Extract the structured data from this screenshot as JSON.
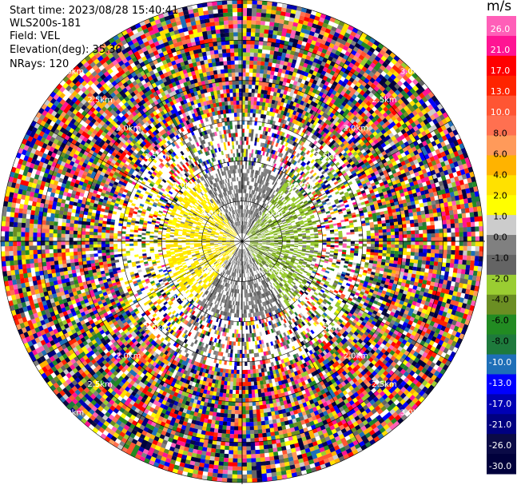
{
  "header": {
    "start_time": "Start time: 2023/08/28 15:40:41",
    "instrument": "WLS200s-181",
    "field": "Field: VEL",
    "elevation": "Elevation(deg): 35.30",
    "nrays": "NRays: 120"
  },
  "colorbar": {
    "unit": "m/s",
    "ticks": [
      "26.0",
      "21.0",
      "17.0",
      "13.0",
      "10.0",
      "8.0",
      "6.0",
      "4.0",
      "2.0",
      "1.0",
      "0.0",
      "-1.0",
      "-2.0",
      "-4.0",
      "-6.0",
      "-8.0",
      "-10.0",
      "-13.0",
      "-17.0",
      "-21.0",
      "-26.0",
      "-30.0"
    ],
    "colors": [
      "#ff5fb8",
      "#ff1493",
      "#ff0000",
      "#ff2400",
      "#ff5533",
      "#ff7050",
      "#ff9a5a",
      "#ffb300",
      "#ffe100",
      "#ffff00",
      "#cccccc",
      "#808080",
      "#646464",
      "#9acd32",
      "#6b8e23",
      "#228b22",
      "#1e7a3c",
      "#1e6fb8",
      "#0000ff",
      "#0000b4",
      "#000080",
      "#0a0a46",
      "#00003c"
    ]
  },
  "chart_data": {
    "type": "heatmap",
    "title": "",
    "projection": "polar PPI",
    "nrays": 120,
    "range_rings_km": [
      0.5,
      1.0,
      1.5,
      2.0,
      2.5,
      3.0
    ],
    "ring_labels": [
      "0.5km",
      "1.0km",
      "1.5km",
      "2.0km",
      "2.5km",
      "3.0km"
    ],
    "spoke_angles_deg": [
      0,
      30,
      60,
      90,
      120,
      150,
      180,
      210,
      240,
      270,
      300,
      330
    ],
    "near_field": {
      "left_sector": "yellow (positive velocity, ~2-4 m/s)",
      "right_sector": "yellow-green (negative velocity, ~-1 to -2 m/s)",
      "top_bottom_sectors": "grey (~0 m/s)",
      "beyond_1km": "noisy, mixed colors spanning -30 to 26 m/s"
    }
  }
}
